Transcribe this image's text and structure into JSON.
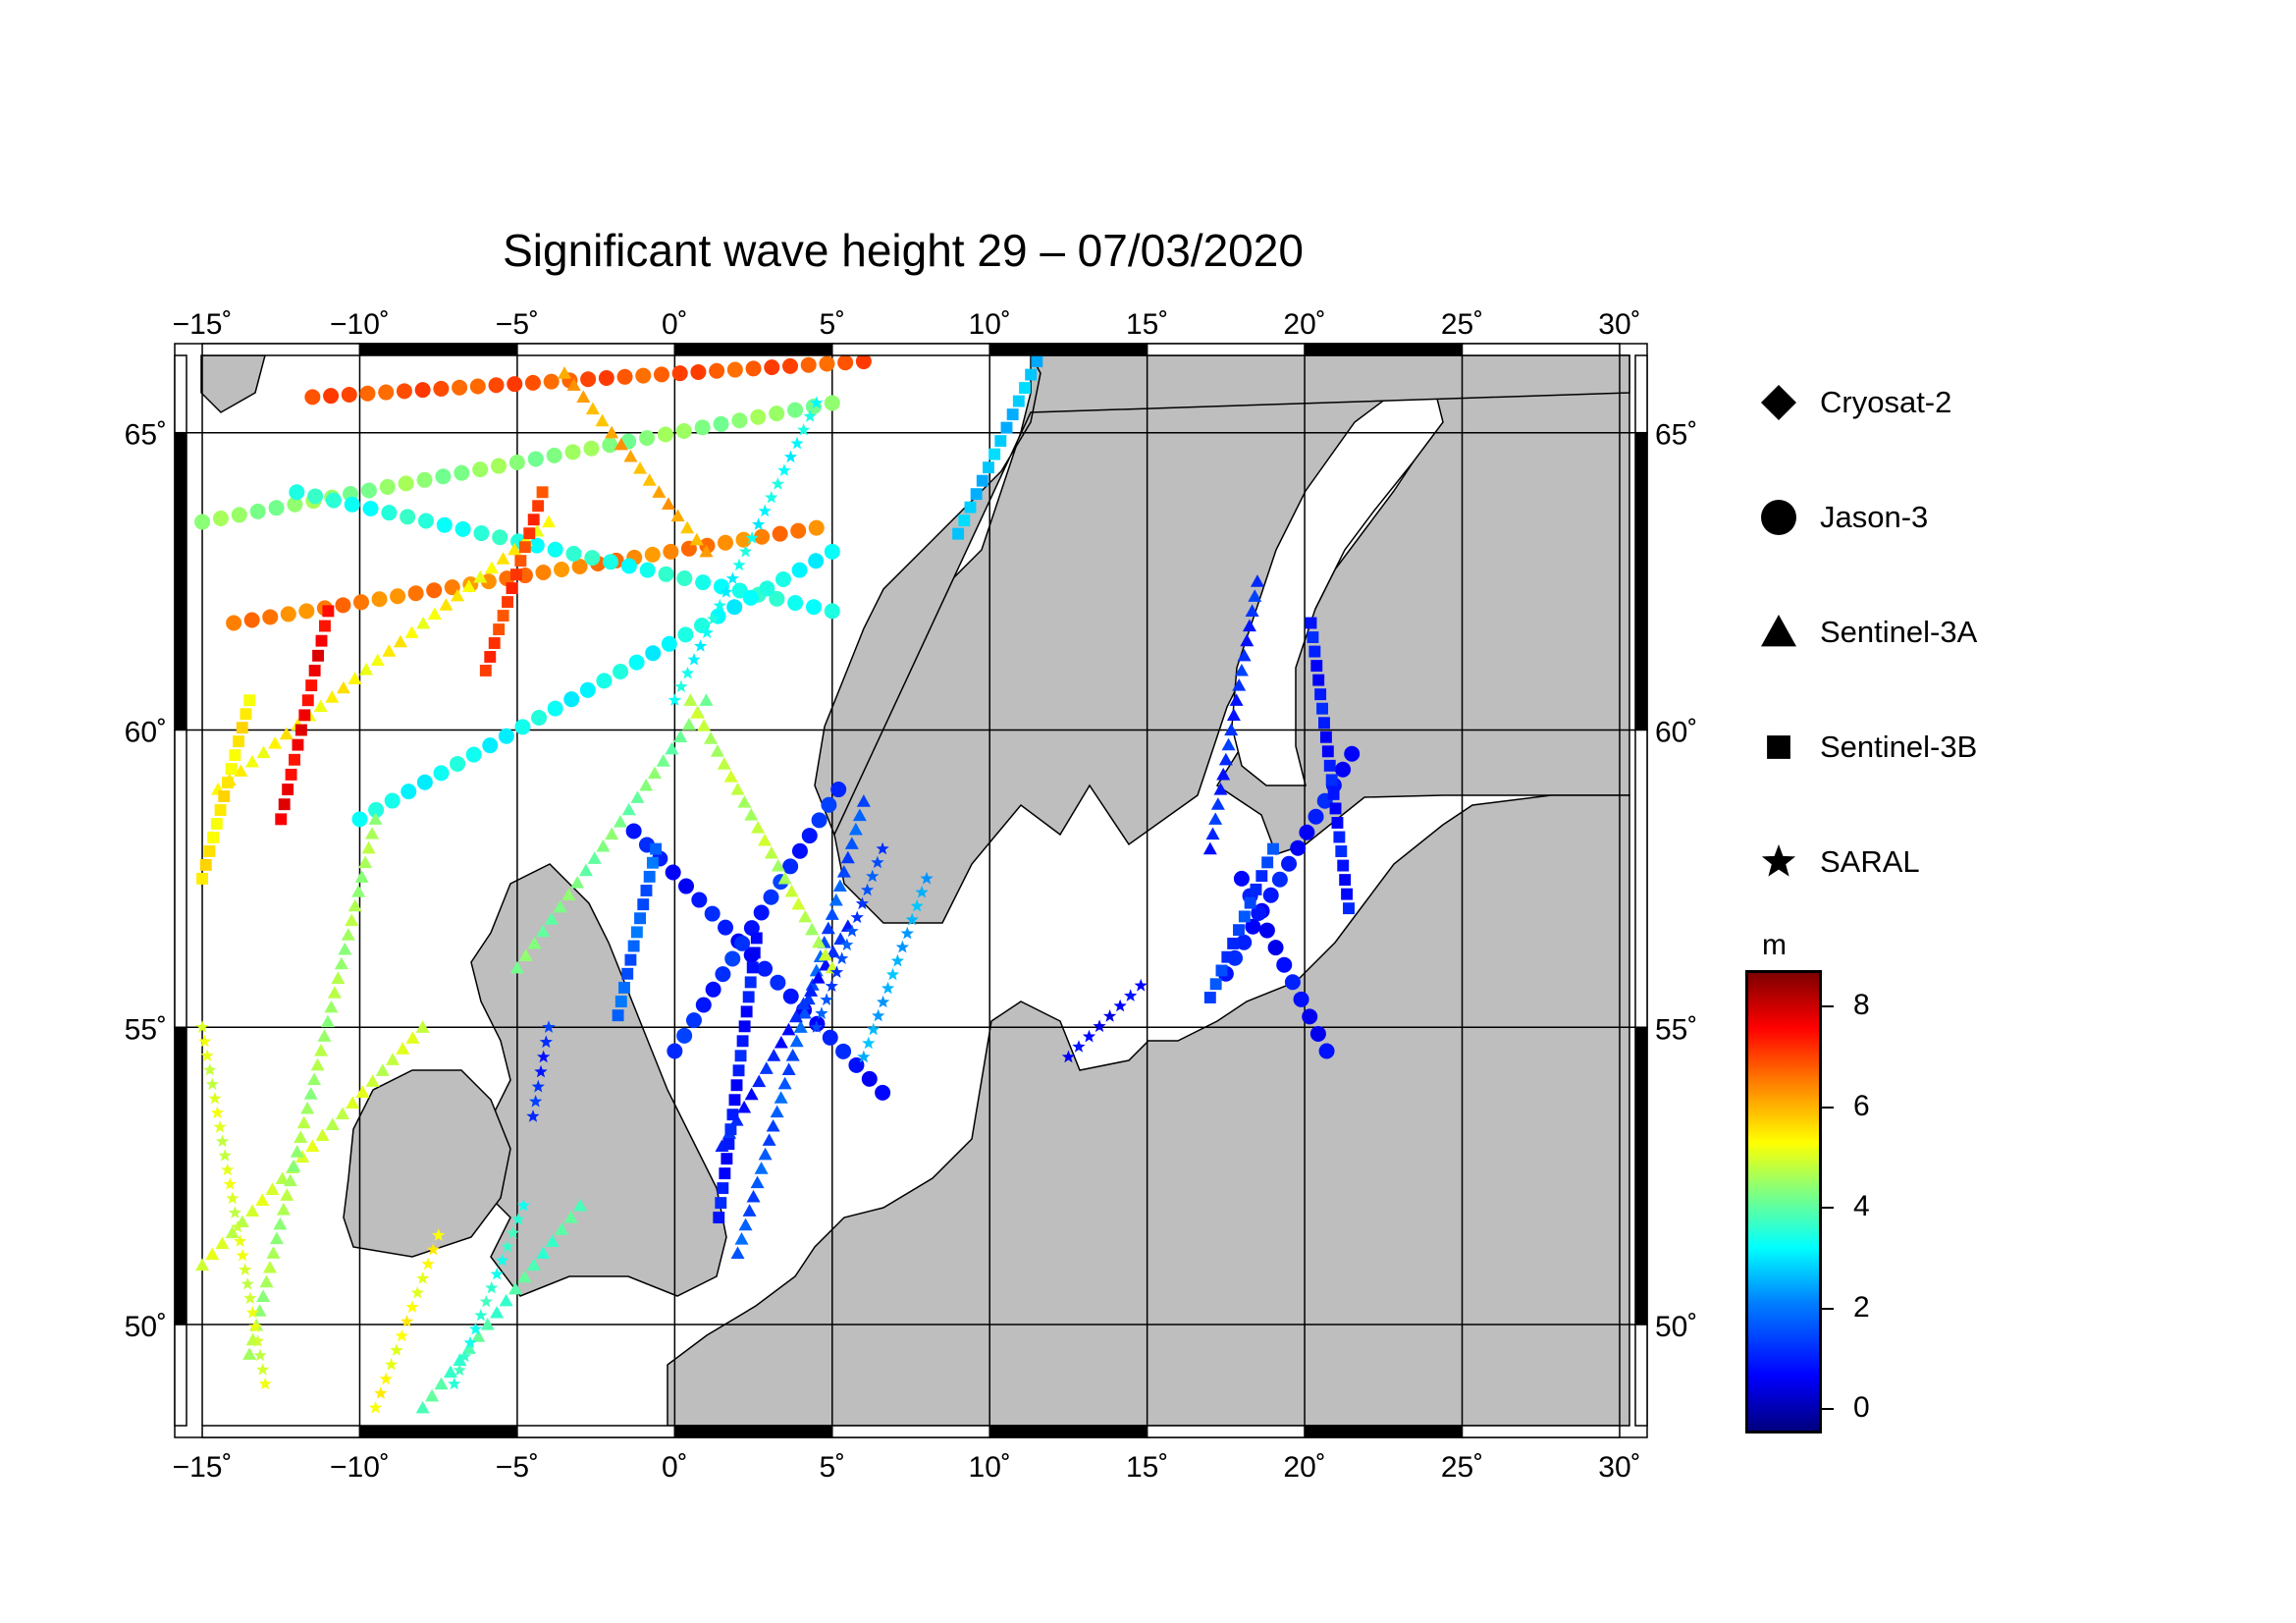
{
  "title": "Significant wave height 29 – 07/03/2020",
  "lon_ticks": [
    "−15˚",
    "−10˚",
    "−5˚",
    "0˚",
    "5˚",
    "10˚",
    "15˚",
    "20˚",
    "25˚",
    "30˚"
  ],
  "lat_ticks": [
    "65˚",
    "60˚",
    "55˚",
    "50˚"
  ],
  "legend": [
    {
      "label": "Cryosat-2",
      "symbol": "diamond"
    },
    {
      "label": "Jason-3",
      "symbol": "circle"
    },
    {
      "label": "Sentinel-3A",
      "symbol": "triangle"
    },
    {
      "label": "Sentinel-3B",
      "symbol": "square"
    },
    {
      "label": "SARAL",
      "symbol": "star"
    }
  ],
  "colorbar": {
    "unit": "m",
    "ticks": [
      "8",
      "6",
      "4",
      "2",
      "0"
    ],
    "range": [
      -0.5,
      8.7
    ],
    "colors": [
      "#00007f",
      "#0000ff",
      "#0080ff",
      "#00ffff",
      "#80ff80",
      "#ffff00",
      "#ff8000",
      "#ff0000",
      "#7f0000"
    ]
  },
  "map": {
    "extent": {
      "lon": [
        -15.5,
        30.5
      ],
      "lat": [
        48.3,
        66.3
      ]
    },
    "land_color": "#bebebe",
    "sea_color": "#ffffff"
  },
  "tracks": [
    {
      "satellite": "Jason-3",
      "symbol": "circle",
      "start": [
        -1.3,
        58.3
      ],
      "end": [
        6.6,
        53.9
      ],
      "value": 0.8
    },
    {
      "satellite": "Jason-3",
      "symbol": "circle",
      "start": [
        0.0,
        54.6
      ],
      "end": [
        5.2,
        59.0
      ],
      "value": 1.0
    },
    {
      "satellite": "Jason-3",
      "symbol": "circle",
      "start": [
        -15.0,
        63.5
      ],
      "end": [
        5.0,
        65.5
      ],
      "value": 4.2
    },
    {
      "satellite": "Jason-3",
      "symbol": "circle",
      "start": [
        -14.0,
        61.8
      ],
      "end": [
        4.5,
        63.4
      ],
      "value": 6.4
    },
    {
      "satellite": "Jason-3",
      "symbol": "circle",
      "start": [
        -12.0,
        64.0
      ],
      "end": [
        5.0,
        62.0
      ],
      "value": 3.2
    },
    {
      "satellite": "Jason-3",
      "symbol": "circle",
      "start": [
        -10.0,
        58.5
      ],
      "end": [
        5.0,
        63.0
      ],
      "value": 3.0
    },
    {
      "satellite": "Jason-3",
      "symbol": "circle",
      "start": [
        17.5,
        55.9
      ],
      "end": [
        21.5,
        59.6
      ],
      "value": 0.8
    },
    {
      "satellite": "Jason-3",
      "symbol": "circle",
      "start": [
        18.0,
        57.5
      ],
      "end": [
        20.7,
        54.6
      ],
      "value": 0.7
    },
    {
      "satellite": "Jason-3",
      "symbol": "circle",
      "start": [
        -11.5,
        65.6
      ],
      "end": [
        6.0,
        66.2
      ],
      "value": 6.8
    },
    {
      "satellite": "Sentinel-3A",
      "symbol": "triangle",
      "start": [
        2.0,
        51.2
      ],
      "end": [
        6.0,
        58.8
      ],
      "value": 1.4
    },
    {
      "satellite": "Sentinel-3A",
      "symbol": "triangle",
      "start": [
        1.5,
        53.0
      ],
      "end": [
        5.5,
        56.7
      ],
      "value": 0.9
    },
    {
      "satellite": "Sentinel-3A",
      "symbol": "triangle",
      "start": [
        -15.0,
        51.0
      ],
      "end": [
        -8.0,
        55.0
      ],
      "value": 4.8
    },
    {
      "satellite": "Sentinel-3A",
      "symbol": "triangle",
      "start": [
        -14.5,
        59.0
      ],
      "end": [
        -4.0,
        63.5
      ],
      "value": 5.3
    },
    {
      "satellite": "Sentinel-3A",
      "symbol": "triangle",
      "start": [
        -8.0,
        48.6
      ],
      "end": [
        -3.0,
        52.0
      ],
      "value": 3.6
    },
    {
      "satellite": "Sentinel-3A",
      "symbol": "triangle",
      "start": [
        -13.5,
        49.5
      ],
      "end": [
        -9.5,
        58.5
      ],
      "value": 4.4
    },
    {
      "satellite": "Sentinel-3A",
      "symbol": "triangle",
      "start": [
        -5.0,
        56.0
      ],
      "end": [
        1.0,
        60.5
      ],
      "value": 4.0
    },
    {
      "satellite": "Sentinel-3A",
      "symbol": "triangle",
      "start": [
        0.5,
        60.5
      ],
      "end": [
        5.0,
        56.0
      ],
      "value": 4.6
    },
    {
      "satellite": "Sentinel-3A",
      "symbol": "triangle",
      "start": [
        18.5,
        62.5
      ],
      "end": [
        17.0,
        58.0
      ],
      "value": 1.0
    },
    {
      "satellite": "Sentinel-3A",
      "symbol": "triangle",
      "start": [
        -3.5,
        66.0
      ],
      "end": [
        1.0,
        63.0
      ],
      "value": 6.0
    },
    {
      "satellite": "Sentinel-3B",
      "symbol": "square",
      "start": [
        -1.8,
        55.2
      ],
      "end": [
        -0.6,
        58.0
      ],
      "value": 1.5
    },
    {
      "satellite": "Sentinel-3B",
      "symbol": "square",
      "start": [
        1.4,
        51.8
      ],
      "end": [
        2.6,
        56.5
      ],
      "value": 0.8
    },
    {
      "satellite": "Sentinel-3B",
      "symbol": "square",
      "start": [
        17.0,
        55.5
      ],
      "end": [
        19.0,
        58.0
      ],
      "value": 1.2
    },
    {
      "satellite": "Sentinel-3B",
      "symbol": "square",
      "start": [
        20.2,
        61.8
      ],
      "end": [
        21.4,
        57.0
      ],
      "value": 0.8
    },
    {
      "satellite": "Sentinel-3B",
      "symbol": "square",
      "start": [
        -12.5,
        58.5
      ],
      "end": [
        -11.0,
        62.0
      ],
      "value": 7.6
    },
    {
      "satellite": "Sentinel-3B",
      "symbol": "square",
      "start": [
        -6.0,
        61.0
      ],
      "end": [
        -4.2,
        64.0
      ],
      "value": 7.0
    },
    {
      "satellite": "Sentinel-3B",
      "symbol": "square",
      "start": [
        -15.0,
        57.5
      ],
      "end": [
        -13.5,
        60.5
      ],
      "value": 5.4
    },
    {
      "satellite": "Sentinel-3B",
      "symbol": "square",
      "start": [
        9.0,
        63.3
      ],
      "end": [
        11.5,
        66.2
      ],
      "value": 2.4
    },
    {
      "satellite": "SARAL",
      "symbol": "star",
      "start": [
        4.5,
        55.0
      ],
      "end": [
        6.6,
        58.0
      ],
      "value": 1.3
    },
    {
      "satellite": "SARAL",
      "symbol": "star",
      "start": [
        6.0,
        54.5
      ],
      "end": [
        8.0,
        57.5
      ],
      "value": 2.2
    },
    {
      "satellite": "SARAL",
      "symbol": "star",
      "start": [
        -4.5,
        53.5
      ],
      "end": [
        -4.0,
        55.0
      ],
      "value": 1.0
    },
    {
      "satellite": "SARAL",
      "symbol": "star",
      "start": [
        -9.5,
        48.6
      ],
      "end": [
        -7.5,
        51.5
      ],
      "value": 5.2
    },
    {
      "satellite": "SARAL",
      "symbol": "star",
      "start": [
        -7.0,
        49.0
      ],
      "end": [
        -4.8,
        52.0
      ],
      "value": 3.3
    },
    {
      "satellite": "SARAL",
      "symbol": "star",
      "start": [
        0.0,
        60.5
      ],
      "end": [
        4.5,
        65.5
      ],
      "value": 3.0
    },
    {
      "satellite": "SARAL",
      "symbol": "star",
      "start": [
        12.5,
        54.5
      ],
      "end": [
        14.8,
        55.7
      ],
      "value": 0.6
    },
    {
      "satellite": "SARAL",
      "symbol": "star",
      "start": [
        -15.0,
        55.0
      ],
      "end": [
        -13.0,
        49.0
      ],
      "value": 4.9
    }
  ]
}
